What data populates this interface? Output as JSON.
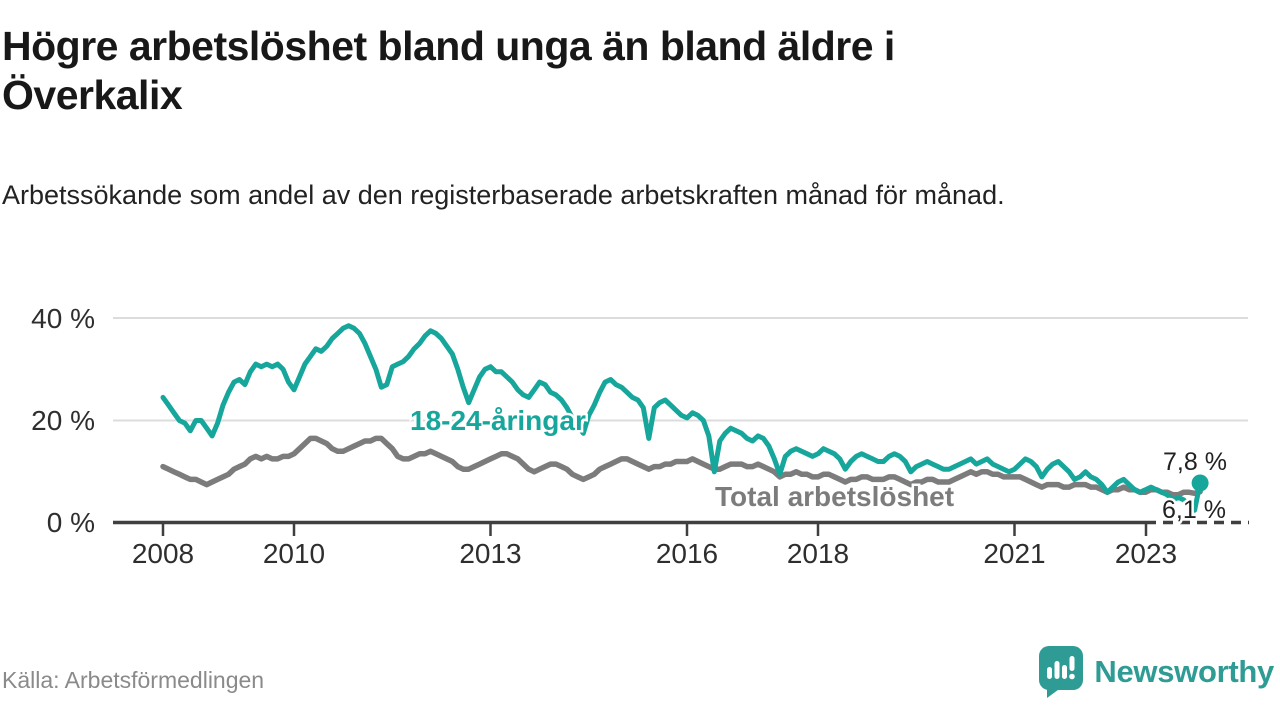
{
  "header": {
    "title_line1": "Högre arbetslöshet bland unga än bland äldre i",
    "title_line2": "Överkalix",
    "subtitle": "Arbetssökande som andel av den registerbaserade arbetskraften månad för månad."
  },
  "chart_data": {
    "type": "line",
    "unit": "%",
    "x_start": "2008-01",
    "x_step": "1 month",
    "ylim": [
      0,
      40
    ],
    "grid": "horizontal",
    "y_ticks": [
      "0 %",
      "20 %",
      "40 %"
    ],
    "x_ticks": [
      "2008",
      "2010",
      "2013",
      "2016",
      "2018",
      "2021",
      "2023"
    ],
    "series": [
      {
        "name": "18-24-åringar",
        "color": "#17a69b",
        "end_label": "7,8 %",
        "end_value": 7.8,
        "values": [
          24.5,
          23,
          21.5,
          20,
          19.5,
          18,
          20,
          20,
          18.5,
          17,
          19.5,
          23,
          25.5,
          27.5,
          28,
          27,
          29.5,
          31,
          30.5,
          31,
          30.5,
          31,
          30,
          27.5,
          26,
          28.5,
          31,
          32.5,
          34,
          33.5,
          34.5,
          36,
          37,
          38,
          38.5,
          38,
          37,
          35,
          32.5,
          30,
          26.5,
          27,
          30.5,
          31,
          31.5,
          32.5,
          34,
          35,
          36.5,
          37.5,
          37,
          36,
          34.5,
          33,
          30,
          26.5,
          23.5,
          26,
          28.5,
          30,
          30.5,
          29.5,
          29.5,
          28.5,
          27.5,
          26,
          25,
          24.5,
          26,
          27.5,
          27,
          25.5,
          25,
          24,
          22.5,
          20.5,
          19,
          17.5,
          21,
          23,
          25.5,
          27.5,
          28,
          27,
          26.5,
          25.5,
          24.5,
          24,
          22.5,
          16.5,
          22.5,
          23.5,
          24,
          23,
          22,
          21,
          20.5,
          21.5,
          21,
          20,
          17,
          10,
          16,
          17.5,
          18.5,
          18,
          17.5,
          16.5,
          16,
          17,
          16.5,
          15,
          12.5,
          9.5,
          13,
          14,
          14.5,
          14,
          13.5,
          13,
          13.5,
          14.5,
          14,
          13.5,
          12.5,
          10.5,
          12,
          13,
          13.5,
          13,
          12.5,
          12,
          12,
          13,
          13.5,
          13,
          12,
          10,
          11,
          11.5,
          12,
          11.5,
          11,
          10.5,
          10.5,
          11,
          11.5,
          12,
          12.5,
          11.5,
          12,
          12.5,
          11.5,
          11,
          10.5,
          10,
          10.5,
          11.5,
          12.5,
          12,
          11,
          9,
          10.5,
          11.5,
          12,
          11,
          10,
          8.5,
          9,
          10,
          9,
          8.5,
          7.5,
          6,
          7,
          8,
          8.5,
          7.5,
          6.5,
          6,
          6.5,
          7,
          6.5,
          6,
          5.5,
          4.5,
          5,
          4.5,
          3.5,
          2.5,
          7.8
        ]
      },
      {
        "name": "Total arbetslöshet",
        "color": "#7c7c7c",
        "end_label": "6,1 %",
        "end_value": 6.1,
        "values": [
          11,
          10.5,
          10,
          9.5,
          9,
          8.5,
          8.5,
          8,
          7.5,
          8,
          8.5,
          9,
          9.5,
          10.5,
          11,
          11.5,
          12.5,
          13,
          12.5,
          13,
          12.5,
          12.5,
          13,
          13,
          13.5,
          14.5,
          15.5,
          16.5,
          16.5,
          16,
          15.5,
          14.5,
          14,
          14,
          14.5,
          15,
          15.5,
          16,
          16,
          16.5,
          16.5,
          15.5,
          14.5,
          13,
          12.5,
          12.5,
          13,
          13.5,
          13.5,
          14,
          13.5,
          13,
          12.5,
          12,
          11,
          10.5,
          10.5,
          11,
          11.5,
          12,
          12.5,
          13,
          13.5,
          13.5,
          13,
          12.5,
          11.5,
          10.5,
          10,
          10.5,
          11,
          11.5,
          11.5,
          11,
          10.5,
          9.5,
          9,
          8.5,
          9,
          9.5,
          10.5,
          11,
          11.5,
          12,
          12.5,
          12.5,
          12,
          11.5,
          11,
          10.5,
          11,
          11,
          11.5,
          11.5,
          12,
          12,
          12,
          12.5,
          12,
          11.5,
          11,
          10.5,
          10.5,
          11,
          11.5,
          11.5,
          11.5,
          11,
          11,
          11.5,
          11,
          10.5,
          10,
          9,
          9.5,
          9.5,
          10,
          9.5,
          9.5,
          9,
          9,
          9.5,
          9.5,
          9,
          8.5,
          8,
          8.5,
          8.5,
          9,
          9,
          8.5,
          8.5,
          8.5,
          9,
          9,
          8.5,
          8,
          7.5,
          8,
          8,
          8.5,
          8.5,
          8,
          8,
          8,
          8.5,
          9,
          9.5,
          10,
          9.5,
          10,
          10,
          9.5,
          9.5,
          9,
          9,
          9,
          9,
          8.5,
          8,
          7.5,
          7,
          7.5,
          7.5,
          7.5,
          7,
          7,
          7.5,
          7.5,
          7.5,
          7,
          7,
          6.5,
          6,
          6.5,
          6.5,
          7,
          6.5,
          6.5,
          6,
          6,
          6.5,
          6.5,
          6,
          6,
          5.5,
          5.5,
          6,
          6,
          5.8,
          6.1
        ]
      }
    ]
  },
  "footer": {
    "source": "Källa: Arbetsförmedlingen",
    "brand": "Newsworthy"
  }
}
